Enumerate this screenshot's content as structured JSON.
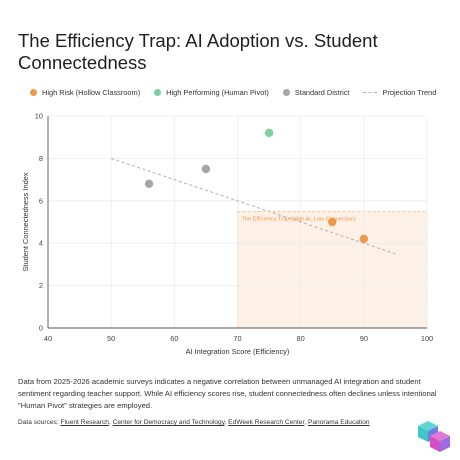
{
  "chart_data": {
    "type": "scatter",
    "title": "The Efficiency Trap: AI Adoption vs. Student Connectedness",
    "xlabel": "AI Integration Score (Efficiency)",
    "ylabel": "Student Connectedness Index",
    "xlim": [
      40,
      100
    ],
    "ylim": [
      0,
      10
    ],
    "x_ticks": [
      40,
      50,
      60,
      70,
      80,
      90,
      100
    ],
    "y_ticks": [
      0,
      2,
      4,
      6,
      8,
      10
    ],
    "grid": true,
    "legend_position": "top",
    "series": [
      {
        "name": "High Risk (Hollow Classroom)",
        "color": "#f0984a",
        "points": [
          {
            "x": 85,
            "y": 5.0
          },
          {
            "x": 90,
            "y": 4.2
          }
        ]
      },
      {
        "name": "High Performing (Human Pivot)",
        "color": "#7fcf9e",
        "points": [
          {
            "x": 75,
            "y": 9.2
          }
        ]
      },
      {
        "name": "Standard District",
        "color": "#a6a6a6",
        "points": [
          {
            "x": 56,
            "y": 6.8
          },
          {
            "x": 65,
            "y": 7.5
          }
        ]
      }
    ],
    "trend": {
      "name": "Projection Trend",
      "color": "#b3b3b3",
      "start": {
        "x": 50,
        "y": 8.0
      },
      "end": {
        "x": 95,
        "y": 3.5
      }
    },
    "annotation": {
      "text": "The Efficiency Trap (High AI, Low Connection)",
      "color": "#f0984a",
      "region": {
        "x_min": 70,
        "x_max": 100,
        "y_min": 0,
        "y_max": 5.5
      }
    }
  },
  "description": "Data from 2025-2026 academic surveys indicates a negative correlation between unmanaged AI integration and student sentiment regarding teacher support. While AI efficiency scores rise, student connectedness often declines unless intentional \"Human Pivot\" strategies are employed.",
  "sources": {
    "label": "Data sources:",
    "links": [
      "Fluent Research",
      "Center for Democracy and Technology",
      "EdWeek Research Center",
      "Panorama Education"
    ]
  },
  "logo": {
    "icon": "cube-logo-icon",
    "colors": [
      "#3fc7c7",
      "#6f7fe0",
      "#d24fc4",
      "#a06be0"
    ]
  }
}
